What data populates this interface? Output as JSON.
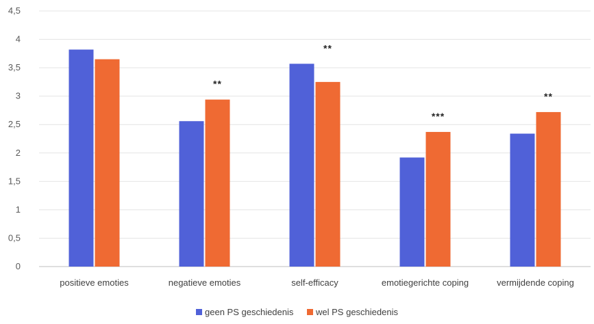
{
  "chart_data": {
    "type": "bar",
    "categories": [
      "positieve emoties",
      "negatieve emoties",
      "self-efficacy",
      "emotiegerichte coping",
      "vermijdende coping"
    ],
    "series": [
      {
        "name": "geen PS geschiedenis",
        "values": [
          3.82,
          2.56,
          3.57,
          1.92,
          2.34
        ],
        "color": "#5061d8"
      },
      {
        "name": "wel PS geschiedenis",
        "values": [
          3.65,
          2.94,
          3.25,
          2.37,
          2.72
        ],
        "color": "#ef6a33"
      }
    ],
    "significance": [
      "",
      "**",
      "**",
      "***",
      "**"
    ],
    "yticks": [
      "0",
      "0,5",
      "1",
      "1,5",
      "2",
      "2,5",
      "3",
      "3,5",
      "4",
      "4,5"
    ],
    "ylim": [
      0,
      4.5
    ],
    "grid": true,
    "legend_position": "bottom",
    "title": "",
    "xlabel": "",
    "ylabel": ""
  }
}
